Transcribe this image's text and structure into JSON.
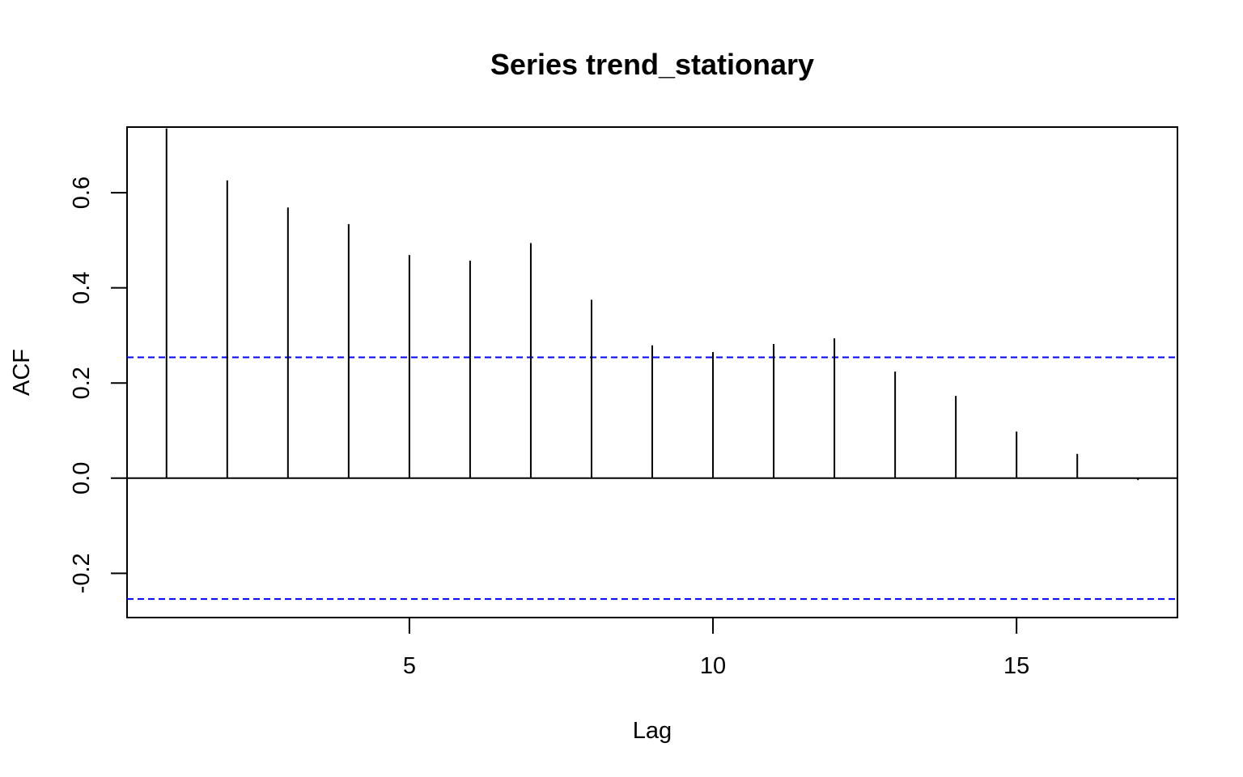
{
  "chart_data": {
    "type": "bar",
    "title": "Series trend_stationary",
    "xlabel": "Lag",
    "ylabel": "ACF",
    "xlim": [
      0.35,
      17.65
    ],
    "ylim": [
      -0.293,
      0.738
    ],
    "x_ticks": [
      5,
      10,
      15
    ],
    "y_ticks": [
      -0.2,
      0.0,
      0.2,
      0.4,
      0.6
    ],
    "y_tick_labels": [
      "-0.2",
      "0.0",
      "0.2",
      "0.4",
      "0.6"
    ],
    "x": [
      1,
      2,
      3,
      4,
      5,
      6,
      7,
      8,
      9,
      10,
      11,
      12,
      13,
      14,
      15,
      16,
      17
    ],
    "values": [
      0.735,
      0.626,
      0.569,
      0.534,
      0.469,
      0.457,
      0.494,
      0.375,
      0.279,
      0.265,
      0.282,
      0.294,
      0.224,
      0.173,
      0.098,
      0.051,
      -0.004
    ],
    "confidence_limit": 0.254,
    "colors": {
      "spikes": "#000000",
      "confidence": "#0000ff",
      "axis": "#000000"
    },
    "grid": false,
    "legend": "none"
  }
}
